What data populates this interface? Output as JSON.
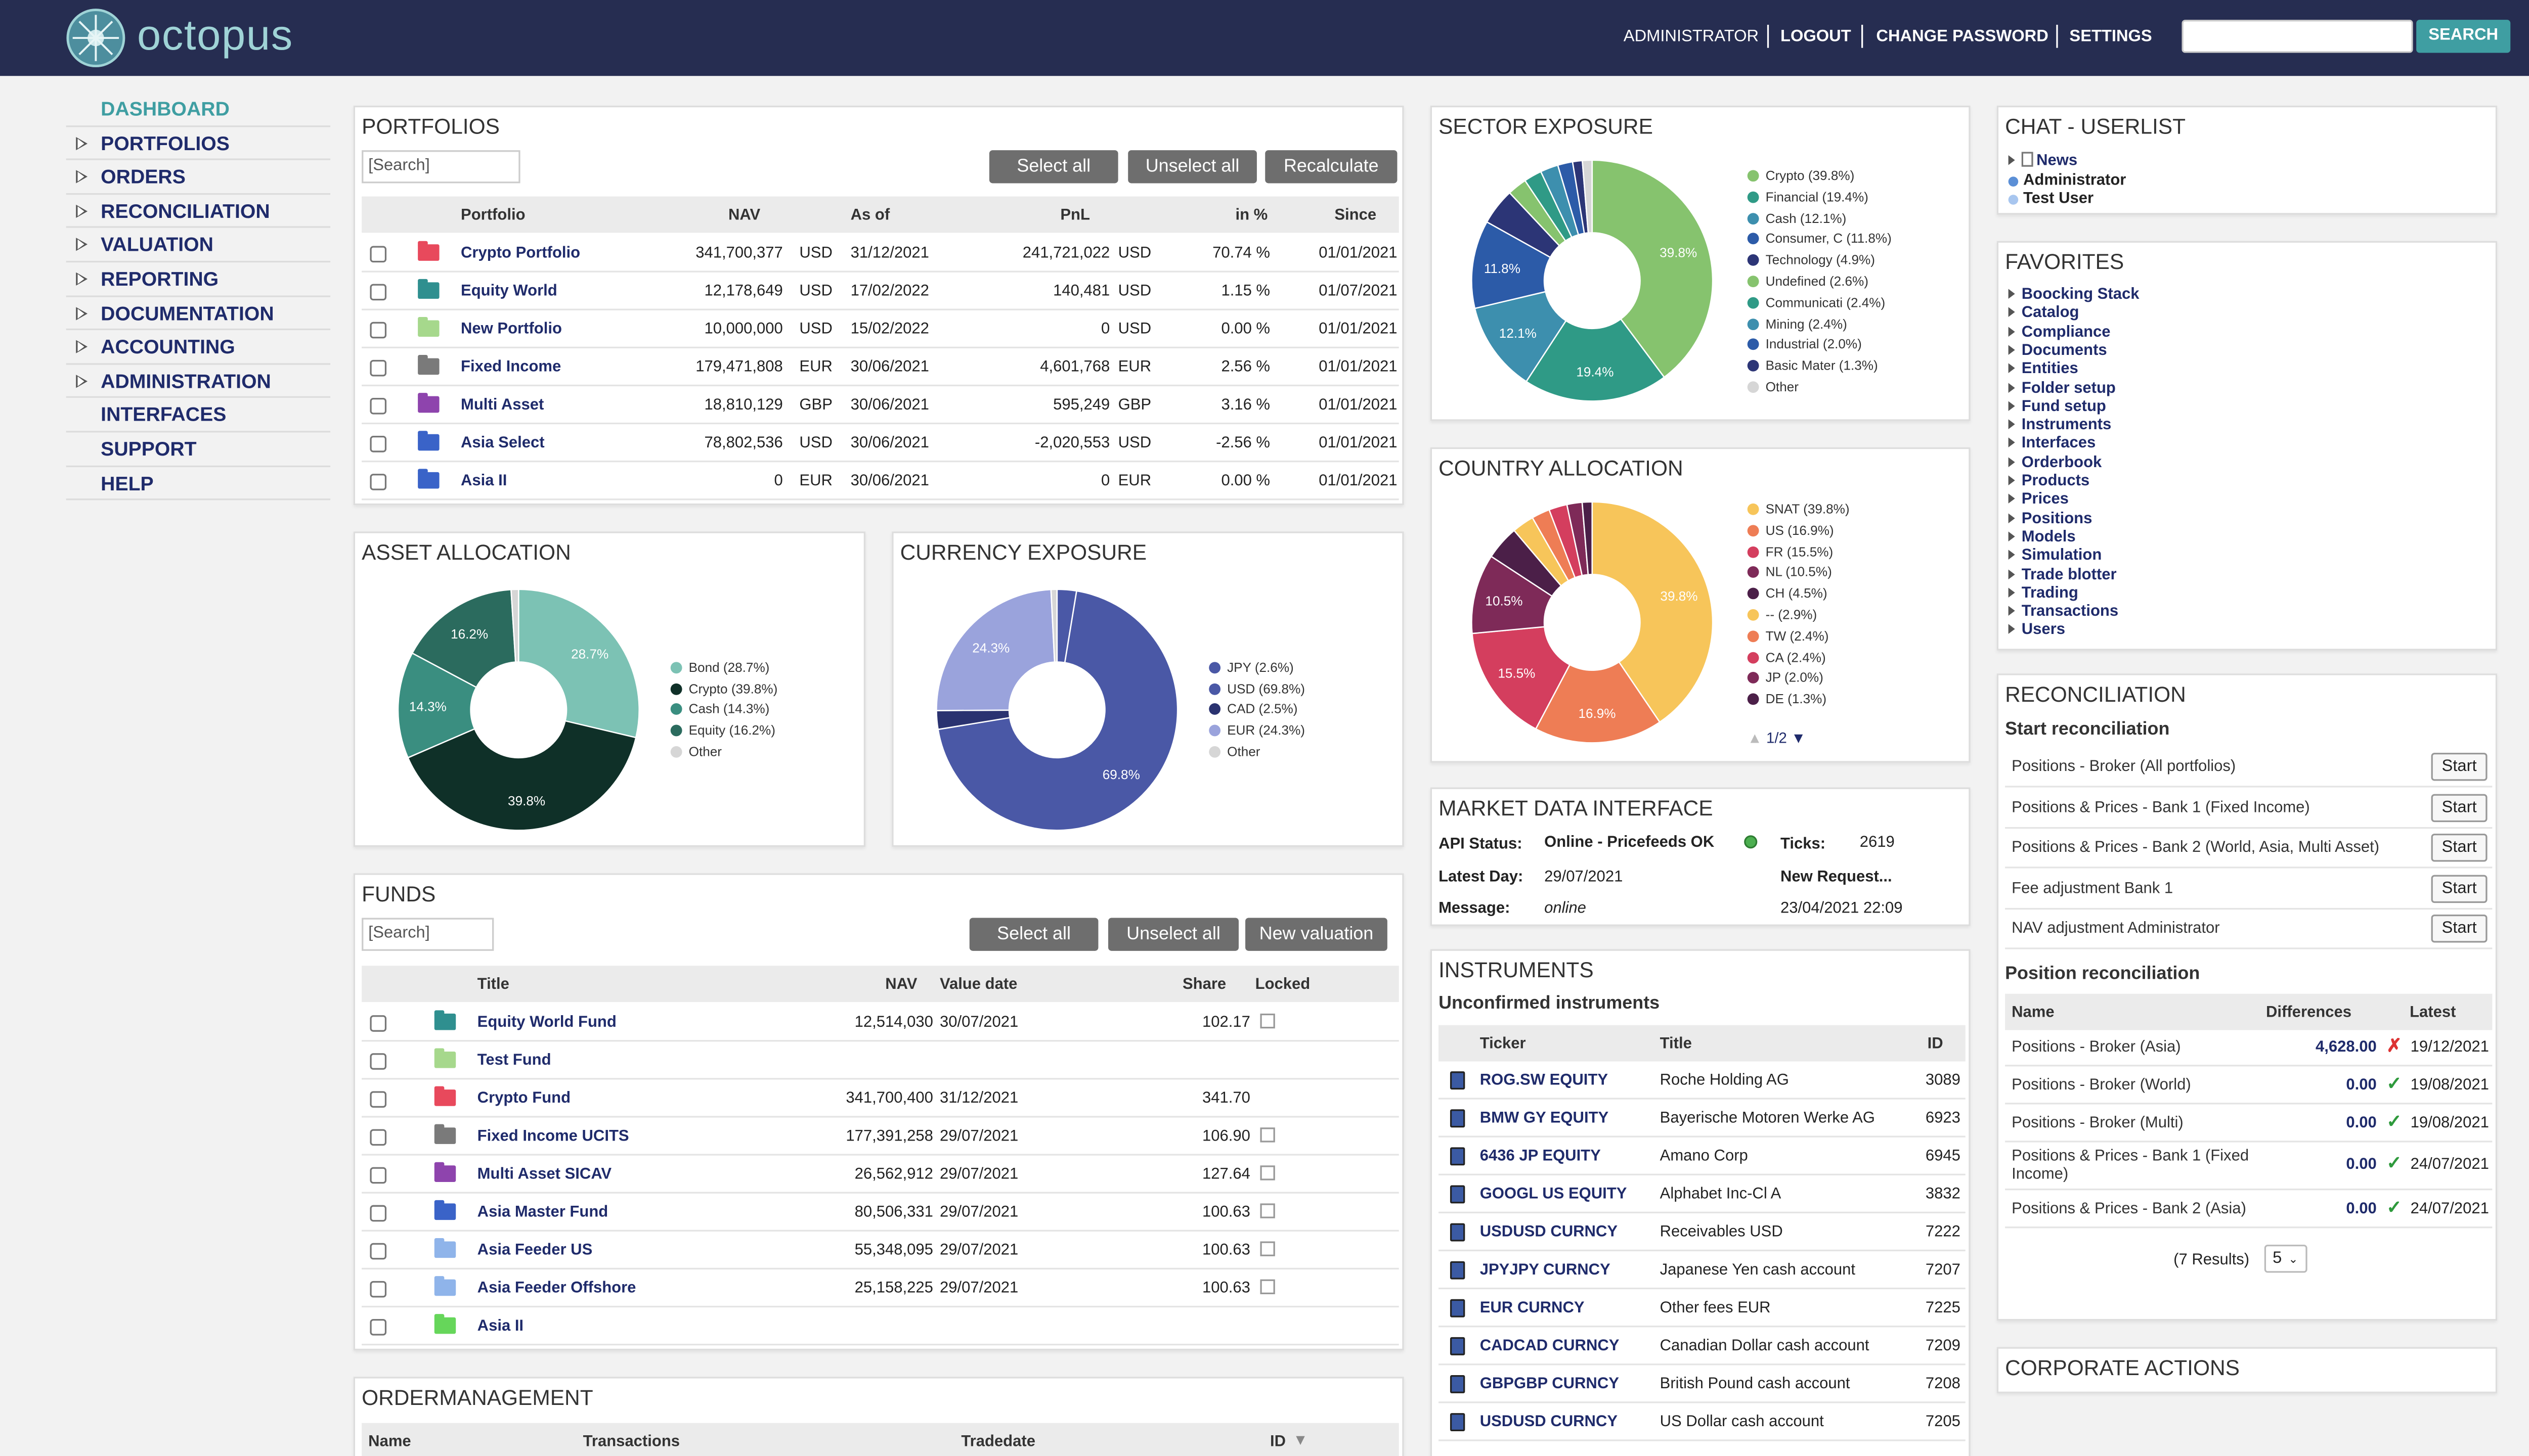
{
  "header": {
    "brand": "octopus",
    "nav": [
      "ADMINISTRATOR",
      "LOGOUT",
      "CHANGE PASSWORD",
      "SETTINGS"
    ],
    "search_button": "SEARCH",
    "search_value": ""
  },
  "sidebar": {
    "items": [
      {
        "label": "DASHBOARD",
        "expandable": false,
        "active": true
      },
      {
        "label": "PORTFOLIOS",
        "expandable": true
      },
      {
        "label": "ORDERS",
        "expandable": true
      },
      {
        "label": "RECONCILIATION",
        "expandable": true
      },
      {
        "label": "VALUATION",
        "expandable": true
      },
      {
        "label": "REPORTING",
        "expandable": true
      },
      {
        "label": "DOCUMENTATION",
        "expandable": true
      },
      {
        "label": "ACCOUNTING",
        "expandable": true
      },
      {
        "label": "ADMINISTRATION",
        "expandable": true
      },
      {
        "label": "INTERFACES",
        "expandable": false
      },
      {
        "label": "SUPPORT",
        "expandable": false
      },
      {
        "label": "HELP",
        "expandable": false
      }
    ]
  },
  "portfolios": {
    "title": "PORTFOLIOS",
    "search_placeholder": "[Search]",
    "buttons": [
      "Select all",
      "Unselect all",
      "Recalculate"
    ],
    "columns": [
      "Portfolio",
      "NAV",
      "As of",
      "PnL",
      "in %",
      "Since"
    ],
    "rows": [
      {
        "name": "Crypto Portfolio",
        "color": "#e8495c",
        "nav": "341,700,377",
        "cur": "USD",
        "asof": "31/12/2021",
        "pnl": "241,721,022",
        "pcur": "USD",
        "pct": "70.74 %",
        "since": "01/01/2021"
      },
      {
        "name": "Equity World",
        "color": "#2f8f8f",
        "nav": "12,178,649",
        "cur": "USD",
        "asof": "17/02/2022",
        "pnl": "140,481",
        "pcur": "USD",
        "pct": "1.15 %",
        "since": "01/07/2021"
      },
      {
        "name": "New Portfolio",
        "color": "#a6d88c",
        "nav": "10,000,000",
        "cur": "USD",
        "asof": "15/02/2022",
        "pnl": "0",
        "pcur": "USD",
        "pct": "0.00 %",
        "since": "01/01/2021"
      },
      {
        "name": "Fixed Income",
        "color": "#7a7a7a",
        "nav": "179,471,808",
        "cur": "EUR",
        "asof": "30/06/2021",
        "pnl": "4,601,768",
        "pcur": "EUR",
        "pct": "2.56 %",
        "since": "01/01/2021"
      },
      {
        "name": "Multi Asset",
        "color": "#8e44ad",
        "nav": "18,810,129",
        "cur": "GBP",
        "asof": "30/06/2021",
        "pnl": "595,249",
        "pcur": "GBP",
        "pct": "3.16 %",
        "since": "01/01/2021"
      },
      {
        "name": "Asia Select",
        "color": "#3a63c8",
        "nav": "78,802,536",
        "cur": "USD",
        "asof": "30/06/2021",
        "pnl": "-2,020,553",
        "pcur": "USD",
        "pct": "-2.56 %",
        "since": "01/01/2021"
      },
      {
        "name": "Asia II",
        "color": "#3a63c8",
        "nav": "0",
        "cur": "EUR",
        "asof": "30/06/2021",
        "pnl": "0",
        "pcur": "EUR",
        "pct": "0.00 %",
        "since": "01/01/2021"
      }
    ]
  },
  "asset_allocation": {
    "title": "ASSET ALLOCATION",
    "chart_data": {
      "type": "pie",
      "labels": [
        "Bond (28.7%)",
        "Crypto (39.8%)",
        "Cash (14.3%)",
        "Equity (16.2%)",
        "Other"
      ],
      "values": [
        28.7,
        39.8,
        14.3,
        16.2,
        1.0
      ],
      "slice_labels": [
        "28.7%",
        "39.8%",
        "14.3%",
        "16.2%",
        ""
      ],
      "colors": [
        "#7cc2b4",
        "#0f3028",
        "#3a8e80",
        "#2b6b5e",
        "#d6d6d6"
      ]
    }
  },
  "currency_exposure": {
    "title": "CURRENCY EXPOSURE",
    "chart_data": {
      "type": "pie",
      "labels": [
        "JPY (2.6%)",
        "USD (69.8%)",
        "CAD (2.5%)",
        "EUR (24.3%)",
        "Other"
      ],
      "values": [
        2.6,
        69.8,
        2.5,
        24.3,
        0.8
      ],
      "slice_labels": [
        "",
        "69.8%",
        "",
        "24.3%",
        ""
      ],
      "colors": [
        "#4a58a6",
        "#4a58a6",
        "#2a3270",
        "#9aa3dc",
        "#d6d6d6"
      ]
    }
  },
  "sector_exposure": {
    "title": "SECTOR EXPOSURE",
    "chart_data": {
      "type": "pie",
      "labels": [
        "Crypto (39.8%)",
        "Financial (19.4%)",
        "Cash (12.1%)",
        "Consumer, C (11.8%)",
        "Technology (4.9%)",
        "Undefined (2.6%)",
        "Communicati (2.4%)",
        "Mining (2.4%)",
        "Industrial (2.0%)",
        "Basic Mater (1.3%)",
        "Other"
      ],
      "values": [
        39.8,
        19.4,
        12.1,
        11.8,
        4.9,
        2.6,
        2.4,
        2.4,
        2.0,
        1.3,
        1.3
      ],
      "slice_labels": [
        "39.8%",
        "19.4%",
        "12.1%",
        "11.8%",
        "",
        "",
        "",
        "",
        "",
        "",
        ""
      ],
      "colors": [
        "#86c36e",
        "#2f9a86",
        "#3d8fae",
        "#2c5ba8",
        "#2c3576",
        "#86c36e",
        "#2f9a86",
        "#3d8fae",
        "#2c5ba8",
        "#2c3576",
        "#d6d6d6"
      ]
    }
  },
  "country_allocation": {
    "title": "COUNTRY ALLOCATION",
    "pager": "1/2",
    "chart_data": {
      "type": "pie",
      "labels": [
        "SNAT (39.8%)",
        "US (16.9%)",
        "FR (15.5%)",
        "NL (10.5%)",
        "CH (4.5%)",
        "-- (2.9%)",
        "TW (2.4%)",
        "CA (2.4%)",
        "JP (2.0%)",
        "DE (1.3%)"
      ],
      "values": [
        39.8,
        16.9,
        15.5,
        10.5,
        4.5,
        2.9,
        2.4,
        2.4,
        2.0,
        1.3
      ],
      "slice_labels": [
        "39.8%",
        "16.9%",
        "15.5%",
        "10.5%",
        "",
        "",
        "",
        "",
        "",
        ""
      ],
      "colors": [
        "#f7c55a",
        "#ee7d55",
        "#d43e5e",
        "#7e2a58",
        "#4b1f48",
        "#f7c55a",
        "#ee7d55",
        "#d43e5e",
        "#7e2a58",
        "#4b1f48"
      ]
    }
  },
  "funds": {
    "title": "FUNDS",
    "search_placeholder": "[Search]",
    "buttons": [
      "Select all",
      "Unselect all",
      "New valuation"
    ],
    "columns": [
      "Title",
      "NAV",
      "Value date",
      "Share",
      "Locked"
    ],
    "rows": [
      {
        "name": "Equity World Fund",
        "color": "#2f8f8f",
        "nav": "12,514,030",
        "date": "30/07/2021",
        "share": "102.17",
        "locked": true
      },
      {
        "name": "Test Fund",
        "color": "#a6d88c",
        "nav": "",
        "date": "",
        "share": "",
        "locked": false
      },
      {
        "name": "Crypto Fund",
        "color": "#e8495c",
        "nav": "341,700,400",
        "date": "31/12/2021",
        "share": "341.70",
        "locked": false
      },
      {
        "name": "Fixed Income UCITS",
        "color": "#7a7a7a",
        "nav": "177,391,258",
        "date": "29/07/2021",
        "share": "106.90",
        "locked": true
      },
      {
        "name": "Multi Asset SICAV",
        "color": "#8e44ad",
        "nav": "26,562,912",
        "date": "29/07/2021",
        "share": "127.64",
        "locked": true
      },
      {
        "name": "Asia Master Fund",
        "color": "#3a63c8",
        "nav": "80,506,331",
        "date": "29/07/2021",
        "share": "100.63",
        "locked": true
      },
      {
        "name": "Asia Feeder US",
        "color": "#8fb4ea",
        "nav": "55,348,095",
        "date": "29/07/2021",
        "share": "100.63",
        "locked": true
      },
      {
        "name": "Asia Feeder Offshore",
        "color": "#8fb4ea",
        "nav": "25,158,225",
        "date": "29/07/2021",
        "share": "100.63",
        "locked": true
      },
      {
        "name": "Asia II",
        "color": "#66d65a",
        "nav": "",
        "date": "",
        "share": "",
        "locked": false
      }
    ]
  },
  "ordermanagement": {
    "title": "ORDERMANAGEMENT",
    "columns": [
      "Name",
      "Transactions",
      "Tradedate",
      "ID"
    ]
  },
  "market_data": {
    "title": "MARKET DATA INTERFACE",
    "api_label": "API Status:",
    "api_value": "Online - Pricefeeds OK",
    "ticks_label": "Ticks:",
    "ticks_value": "2619",
    "day_label": "Latest Day:",
    "day_value": "29/07/2021",
    "new_request": "New Request...",
    "msg_label": "Message:",
    "msg_value": "online",
    "msg_time": "23/04/2021 22:09"
  },
  "instruments": {
    "title": "INSTRUMENTS",
    "subtitle": "Unconfirmed instruments",
    "columns": [
      "Ticker",
      "Title",
      "ID"
    ],
    "rows": [
      {
        "ticker": "ROG.SW EQUITY",
        "title": "Roche Holding AG",
        "id": "3089"
      },
      {
        "ticker": "BMW GY EQUITY",
        "title": "Bayerische Motoren Werke AG",
        "id": "6923"
      },
      {
        "ticker": "6436 JP EQUITY",
        "title": "Amano Corp",
        "id": "6945"
      },
      {
        "ticker": "GOOGL US EQUITY",
        "title": "Alphabet Inc-Cl A",
        "id": "3832"
      },
      {
        "ticker": "USDUSD CURNCY",
        "title": "Receivables USD",
        "id": "7222"
      },
      {
        "ticker": "JPYJPY CURNCY",
        "title": "Japanese Yen cash account",
        "id": "7207"
      },
      {
        "ticker": "EUR CURNCY",
        "title": "Other fees EUR",
        "id": "7225"
      },
      {
        "ticker": "CADCAD CURNCY",
        "title": "Canadian Dollar cash account",
        "id": "7209"
      },
      {
        "ticker": "GBPGBP CURNCY",
        "title": "British Pound cash account",
        "id": "7208"
      },
      {
        "ticker": "USDUSD CURNCY",
        "title": "US Dollar cash account",
        "id": "7205"
      }
    ]
  },
  "chat": {
    "title": "CHAT - USERLIST",
    "items": [
      "News",
      "Administrator",
      "Test User"
    ]
  },
  "favorites": {
    "title": "FAVORITES",
    "items": [
      "Boocking Stack",
      "Catalog",
      "Compliance",
      "Documents",
      "Entities",
      "Folder setup",
      "Fund setup",
      "Instruments",
      "Interfaces",
      "Orderbook",
      "Products",
      "Prices",
      "Positions",
      "Models",
      "Simulation",
      "Trade blotter",
      "Trading",
      "Transactions",
      "Users"
    ]
  },
  "reconciliation": {
    "title": "RECONCILIATION",
    "start_title": "Start reconciliation",
    "start_button": "Start",
    "start_items": [
      "Positions - Broker (All portfolios)",
      "Positions & Prices - Bank 1 (Fixed Income)",
      "Positions & Prices - Bank 2 (World, Asia, Multi Asset)",
      "Fee adjustment Bank 1",
      "NAV adjustment Administrator"
    ],
    "pos_title": "Position reconciliation",
    "columns": [
      "Name",
      "Differences",
      "Latest"
    ],
    "rows": [
      {
        "name": "Positions - Broker (Asia)",
        "diff": "4,628.00",
        "ok": false,
        "date": "19/12/2021"
      },
      {
        "name": "Positions - Broker (World)",
        "diff": "0.00",
        "ok": true,
        "date": "19/08/2021"
      },
      {
        "name": "Positions - Broker (Multi)",
        "diff": "0.00",
        "ok": true,
        "date": "19/08/2021"
      },
      {
        "name": "Positions & Prices - Bank 1 (Fixed Income)",
        "diff": "0.00",
        "ok": true,
        "date": "24/07/2021"
      },
      {
        "name": "Positions & Prices - Bank 2 (Asia)",
        "diff": "0.00",
        "ok": true,
        "date": "24/07/2021"
      }
    ],
    "results": "(7 Results)",
    "page_size": "5"
  },
  "corporate_actions": {
    "title": "CORPORATE ACTIONS"
  }
}
